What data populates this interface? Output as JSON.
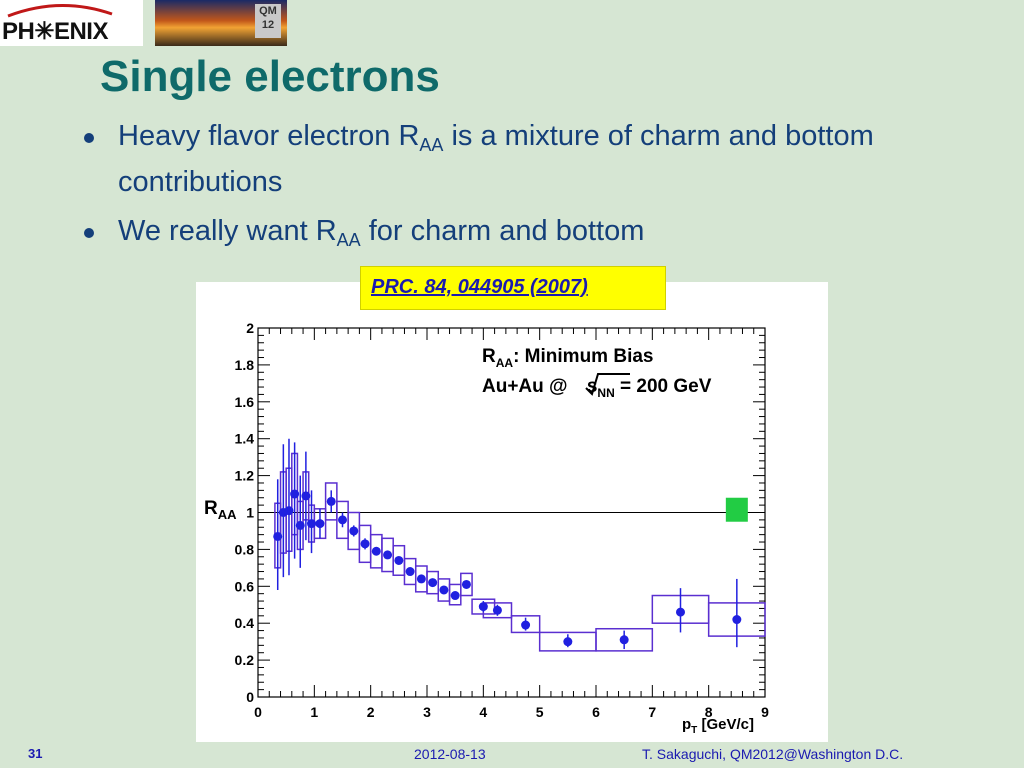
{
  "header": {
    "logo_text": "PH✳ENIX",
    "badge_text": "QM 12"
  },
  "slide": {
    "title": "Single electrons",
    "bullets": [
      {
        "pre": "Heavy flavor electron R",
        "sub": "AA",
        "post": " is a mixture of charm and bottom contributions"
      },
      {
        "pre": "We really want R",
        "sub": "AA",
        "post": " for charm and bottom"
      }
    ],
    "reference": "PRC. 84, 044905 (2007)"
  },
  "footer": {
    "page": "31",
    "date": "2012-08-13",
    "author": "T. Sakaguchi, QM2012@Washington D.C."
  },
  "colors": {
    "title": "#0f6a6a",
    "bullet_text": "#143f7a",
    "data_marker": "#2020e0",
    "sys_box": "#5a2fd0",
    "norm_box": "#22cc44",
    "ref_bg": "#ffff00"
  },
  "chart_data": {
    "type": "scatter",
    "xlabel_main": "p",
    "xlabel_sub": "T",
    "xlabel_unit": " [GeV/c]",
    "ylabel_main": "R",
    "ylabel_sub": "AA",
    "xlim": [
      0,
      9
    ],
    "ylim": [
      0,
      2
    ],
    "xticks": [
      "0",
      "1",
      "2",
      "3",
      "4",
      "5",
      "6",
      "7",
      "8",
      "9"
    ],
    "yticks": [
      "0",
      "0.2",
      "0.4",
      "0.6",
      "0.8",
      "1",
      "1.2",
      "1.4",
      "1.6",
      "1.8",
      "2"
    ],
    "reference_line": 1.0,
    "legend_line1_main": "R",
    "legend_line1_sub": "AA",
    "legend_line1_rest": ": Minimum Bias",
    "legend_line2_pre": "Au+Au @ ",
    "legend_line2_s": "s",
    "legend_line2_sub": "NN",
    "legend_line2_post": " = 200 GeV",
    "norm_uncertainty": {
      "x": 8.5,
      "low": 0.95,
      "high": 1.08
    },
    "points": [
      {
        "x": 0.35,
        "y": 0.87,
        "stat_low": 0.58,
        "stat_high": 1.18,
        "sys_low": 0.7,
        "sys_high": 1.05,
        "hw": 0.05
      },
      {
        "x": 0.45,
        "y": 1.0,
        "stat_low": 0.65,
        "stat_high": 1.37,
        "sys_low": 0.78,
        "sys_high": 1.22,
        "hw": 0.05
      },
      {
        "x": 0.55,
        "y": 1.01,
        "stat_low": 0.66,
        "stat_high": 1.4,
        "sys_low": 0.79,
        "sys_high": 1.24,
        "hw": 0.05
      },
      {
        "x": 0.65,
        "y": 1.1,
        "stat_low": 0.75,
        "stat_high": 1.38,
        "sys_low": 0.88,
        "sys_high": 1.32,
        "hw": 0.05
      },
      {
        "x": 0.75,
        "y": 0.93,
        "stat_low": 0.7,
        "stat_high": 1.2,
        "sys_low": 0.8,
        "sys_high": 1.06,
        "hw": 0.05
      },
      {
        "x": 0.85,
        "y": 1.09,
        "stat_low": 0.85,
        "stat_high": 1.33,
        "sys_low": 0.96,
        "sys_high": 1.22,
        "hw": 0.05
      },
      {
        "x": 0.95,
        "y": 0.94,
        "stat_low": 0.78,
        "stat_high": 1.12,
        "sys_low": 0.84,
        "sys_high": 1.04,
        "hw": 0.05
      },
      {
        "x": 1.1,
        "y": 0.94,
        "stat_low": 0.86,
        "stat_high": 1.02,
        "sys_low": 0.86,
        "sys_high": 1.02,
        "hw": 0.1
      },
      {
        "x": 1.3,
        "y": 1.06,
        "stat_low": 1.0,
        "stat_high": 1.12,
        "sys_low": 0.96,
        "sys_high": 1.16,
        "hw": 0.1
      },
      {
        "x": 1.5,
        "y": 0.96,
        "stat_low": 0.92,
        "stat_high": 1.0,
        "sys_low": 0.86,
        "sys_high": 1.06,
        "hw": 0.1
      },
      {
        "x": 1.7,
        "y": 0.9,
        "stat_low": 0.87,
        "stat_high": 0.93,
        "sys_low": 0.8,
        "sys_high": 1.0,
        "hw": 0.1
      },
      {
        "x": 1.9,
        "y": 0.83,
        "stat_low": 0.8,
        "stat_high": 0.86,
        "sys_low": 0.73,
        "sys_high": 0.93,
        "hw": 0.1
      },
      {
        "x": 2.1,
        "y": 0.79,
        "stat_low": 0.77,
        "stat_high": 0.81,
        "sys_low": 0.7,
        "sys_high": 0.88,
        "hw": 0.1
      },
      {
        "x": 2.3,
        "y": 0.77,
        "stat_low": 0.75,
        "stat_high": 0.79,
        "sys_low": 0.68,
        "sys_high": 0.86,
        "hw": 0.1
      },
      {
        "x": 2.5,
        "y": 0.74,
        "stat_low": 0.72,
        "stat_high": 0.76,
        "sys_low": 0.66,
        "sys_high": 0.82,
        "hw": 0.1
      },
      {
        "x": 2.7,
        "y": 0.68,
        "stat_low": 0.66,
        "stat_high": 0.7,
        "sys_low": 0.61,
        "sys_high": 0.75,
        "hw": 0.1
      },
      {
        "x": 2.9,
        "y": 0.64,
        "stat_low": 0.62,
        "stat_high": 0.66,
        "sys_low": 0.57,
        "sys_high": 0.71,
        "hw": 0.1
      },
      {
        "x": 3.1,
        "y": 0.62,
        "stat_low": 0.6,
        "stat_high": 0.64,
        "sys_low": 0.56,
        "sys_high": 0.68,
        "hw": 0.1
      },
      {
        "x": 3.3,
        "y": 0.58,
        "stat_low": 0.56,
        "stat_high": 0.6,
        "sys_low": 0.52,
        "sys_high": 0.64,
        "hw": 0.1
      },
      {
        "x": 3.5,
        "y": 0.55,
        "stat_low": 0.53,
        "stat_high": 0.57,
        "sys_low": 0.5,
        "sys_high": 0.61,
        "hw": 0.1
      },
      {
        "x": 3.7,
        "y": 0.61,
        "stat_low": 0.59,
        "stat_high": 0.63,
        "sys_low": 0.55,
        "sys_high": 0.67,
        "hw": 0.1
      },
      {
        "x": 4.0,
        "y": 0.49,
        "stat_low": 0.46,
        "stat_high": 0.52,
        "sys_low": 0.45,
        "sys_high": 0.53,
        "hw": 0.2
      },
      {
        "x": 4.25,
        "y": 0.47,
        "stat_low": 0.44,
        "stat_high": 0.5,
        "sys_low": 0.43,
        "sys_high": 0.51,
        "hw": 0.25
      },
      {
        "x": 4.75,
        "y": 0.39,
        "stat_low": 0.36,
        "stat_high": 0.43,
        "sys_low": 0.35,
        "sys_high": 0.44,
        "hw": 0.25
      },
      {
        "x": 5.5,
        "y": 0.3,
        "stat_low": 0.27,
        "stat_high": 0.34,
        "sys_low": 0.25,
        "sys_high": 0.35,
        "hw": 0.5
      },
      {
        "x": 6.5,
        "y": 0.31,
        "stat_low": 0.26,
        "stat_high": 0.36,
        "sys_low": 0.25,
        "sys_high": 0.37,
        "hw": 0.5
      },
      {
        "x": 7.5,
        "y": 0.46,
        "stat_low": 0.35,
        "stat_high": 0.59,
        "sys_low": 0.4,
        "sys_high": 0.55,
        "hw": 0.5
      },
      {
        "x": 8.5,
        "y": 0.42,
        "stat_low": 0.27,
        "stat_high": 0.64,
        "sys_low": 0.33,
        "sys_high": 0.51,
        "hw": 0.5
      }
    ]
  }
}
